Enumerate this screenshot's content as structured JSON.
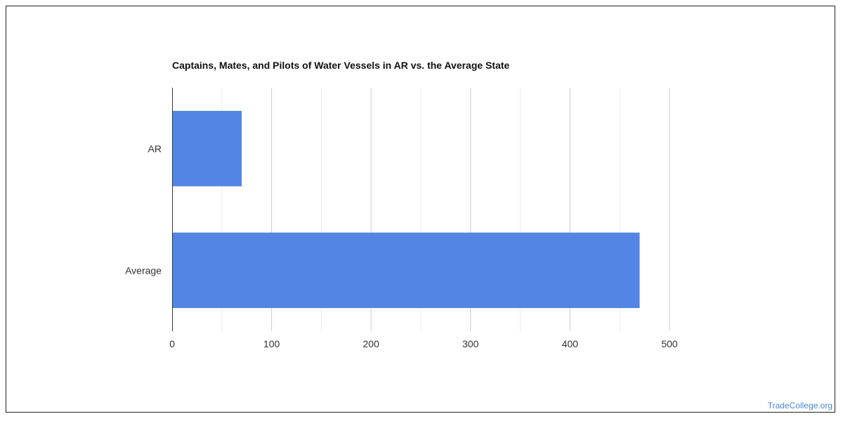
{
  "chart_data": {
    "type": "bar",
    "orientation": "horizontal",
    "title": "Captains, Mates, and Pilots of Water Vessels in AR vs. the Average State",
    "categories": [
      "AR",
      "Average"
    ],
    "values": [
      70,
      470
    ],
    "xlim": [
      0,
      500
    ],
    "xticks": [
      0,
      100,
      200,
      300,
      400,
      500
    ],
    "minor_gridlines": [
      50,
      150,
      250,
      350,
      450
    ],
    "grid": true,
    "bar_color": "#5386e4",
    "legend": "none"
  },
  "watermark": "TradeCollege.org"
}
